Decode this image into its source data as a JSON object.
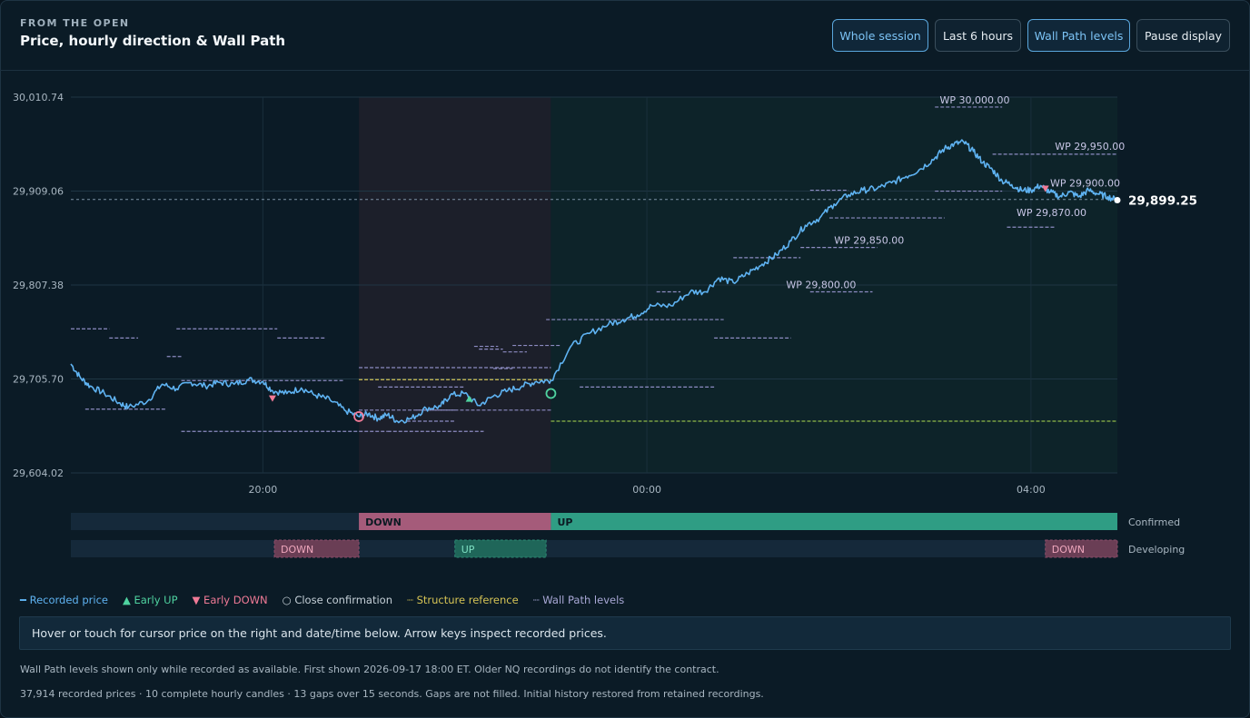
{
  "header": {
    "eyebrow": "FROM THE OPEN",
    "title": "Price, hourly direction & Wall Path"
  },
  "controls": {
    "whole_session": "Whole session",
    "last_6_hours": "Last 6 hours",
    "wall_path_levels": "Wall Path levels",
    "pause_display": "Pause display"
  },
  "legend": {
    "recorded_price": "Recorded price",
    "early_up": "Early UP",
    "early_down": "Early DOWN",
    "close_confirmation": "Close confirmation",
    "structure_reference": "Structure reference",
    "wall_path_levels": "Wall Path levels"
  },
  "hint": "Hover or touch for cursor price on the right and date/time below. Arrow keys inspect recorded prices.",
  "footnotes": {
    "line1": "Wall Path levels shown only while recorded as available. First shown 2026-09-17 18:00 ET. Older NQ recordings do not identify the contract.",
    "line2": "37,914 recorded prices · 10 complete hourly candles · 13 gaps over 15 seconds. Gaps are not filled. Initial history restored from retained recordings."
  },
  "colors": {
    "price": "#5fb3f2",
    "up": "#2f9d84",
    "down": "#a55b7a",
    "early_up": "#4fd3a0",
    "early_down": "#f07a96",
    "structure": "#d6c455",
    "wall_path": "#8d8cc2",
    "reference": "#8fa6bb"
  },
  "chart_data": {
    "type": "line",
    "x_unit": "hours (ET)",
    "x_range": [
      "18:30",
      "05:00"
    ],
    "x_ticks": [
      {
        "label": "20:00",
        "t": 20.0
      },
      {
        "label": "00:00",
        "t": 24.0
      },
      {
        "label": "04:00",
        "t": 28.0
      }
    ],
    "y_ticks": [
      {
        "label": "30,010.74",
        "v": 30010.74
      },
      {
        "label": "29,909.06",
        "v": 29909.06
      },
      {
        "label": "29,807.38",
        "v": 29807.38
      },
      {
        "label": "29,705.70",
        "v": 29705.7
      },
      {
        "label": "29,604.02",
        "v": 29604.02
      }
    ],
    "ylim": [
      29604.02,
      30010.74
    ],
    "grid": true,
    "last_price": {
      "value": 29899.25,
      "label": "29,899.25"
    },
    "reference_line": 29900.0,
    "series": [
      {
        "x": [
          18.0,
          18.1,
          18.2,
          18.35,
          18.5,
          18.6,
          18.8,
          18.95,
          19.1,
          19.25,
          19.4,
          19.55,
          19.7,
          19.85,
          20.0,
          20.1,
          20.25,
          20.4,
          20.55,
          20.7,
          20.85,
          21.0,
          21.1,
          21.2,
          21.3,
          21.4,
          21.55,
          21.7,
          21.85,
          21.95,
          22.1,
          22.25,
          22.4,
          22.55,
          22.7,
          22.85,
          23.0,
          23.2,
          23.4,
          23.6,
          23.75,
          23.9,
          24.05,
          24.25,
          24.45,
          24.6,
          24.75,
          24.9,
          25.05,
          25.2,
          25.35,
          25.5,
          25.65,
          25.8,
          25.95,
          26.1,
          26.25,
          26.4,
          26.55,
          26.7,
          26.85,
          27.0,
          27.1,
          27.2,
          27.3,
          27.4,
          27.5,
          27.6,
          27.7,
          27.8,
          27.9,
          28.0,
          28.1,
          28.2,
          28.3,
          28.4,
          28.5,
          28.6,
          28.7,
          28.8,
          28.9
        ],
        "values": [
          29722,
          29707,
          29698,
          29690,
          29680,
          29675,
          29682,
          29700,
          29695,
          29702,
          29698,
          29702,
          29700,
          29705,
          29703,
          29693,
          29690,
          29696,
          29688,
          29683,
          29672,
          29665,
          29668,
          29663,
          29667,
          29660,
          29663,
          29674,
          29676,
          29688,
          29690,
          29677,
          29687,
          29693,
          29698,
          29703,
          29704,
          29740,
          29755,
          29765,
          29770,
          29775,
          29785,
          29785,
          29800,
          29800,
          29815,
          29810,
          29820,
          29830,
          29840,
          29855,
          29872,
          29880,
          29895,
          29905,
          29910,
          29912,
          29918,
          29925,
          29933,
          29945,
          29955,
          29960,
          29962,
          29952,
          29940,
          29932,
          29920,
          29916,
          29910,
          29910,
          29915,
          29908,
          29903,
          29908,
          29903,
          29910,
          29906,
          29903,
          29899
        ]
      }
    ],
    "wall_path_labels": [
      {
        "label": "WP 30,000.00",
        "t": 27.05,
        "v": 30000.0
      },
      {
        "label": "WP 29,950.00",
        "t": 28.25,
        "v": 29950.0
      },
      {
        "label": "WP 29,900.00",
        "t": 28.2,
        "v": 29910.0
      },
      {
        "label": "WP 29,870.00",
        "t": 27.85,
        "v": 29878.0
      },
      {
        "label": "WP 29,850.00",
        "t": 25.95,
        "v": 29848.0
      },
      {
        "label": "WP 29,800.00",
        "t": 25.45,
        "v": 29800.0
      }
    ],
    "wall_path_segments": [
      {
        "t1": 18.0,
        "t2": 18.4,
        "v": 29760
      },
      {
        "t1": 18.4,
        "t2": 18.7,
        "v": 29750
      },
      {
        "t1": 19.1,
        "t2": 20.15,
        "v": 29760
      },
      {
        "t1": 20.15,
        "t2": 20.65,
        "v": 29750
      },
      {
        "t1": 19.0,
        "t2": 19.15,
        "v": 29730
      },
      {
        "t1": 18.15,
        "t2": 19.0,
        "v": 29673
      },
      {
        "t1": 19.15,
        "t2": 20.85,
        "v": 29704
      },
      {
        "t1": 19.15,
        "t2": 20.15,
        "v": 29649
      },
      {
        "t1": 20.15,
        "t2": 21.3,
        "v": 29649
      },
      {
        "t1": 21.3,
        "t2": 22.3,
        "v": 29649
      },
      {
        "t1": 21.0,
        "t2": 22.0,
        "v": 29672
      },
      {
        "t1": 21.5,
        "t2": 22.0,
        "v": 29660
      },
      {
        "t1": 21.2,
        "t2": 22.1,
        "v": 29697
      },
      {
        "t1": 21.0,
        "t2": 23.0,
        "v": 29718
      },
      {
        "t1": 22.2,
        "t2": 22.45,
        "v": 29741
      },
      {
        "t1": 22.25,
        "t2": 22.5,
        "v": 29738
      },
      {
        "t1": 22.4,
        "t2": 22.6,
        "v": 29717
      },
      {
        "t1": 22.6,
        "t2": 23.1,
        "v": 29742
      },
      {
        "t1": 22.5,
        "t2": 22.75,
        "v": 29735
      },
      {
        "t1": 21.6,
        "t2": 23.0,
        "v": 29672
      },
      {
        "t1": 22.95,
        "t2": 24.8,
        "v": 29770
      },
      {
        "t1": 24.1,
        "t2": 24.35,
        "v": 29800
      },
      {
        "t1": 24.7,
        "t2": 25.5,
        "v": 29750
      },
      {
        "t1": 23.3,
        "t2": 24.7,
        "v": 29697
      },
      {
        "t1": 24.9,
        "t2": 25.6,
        "v": 29837
      },
      {
        "t1": 25.9,
        "t2": 27.1,
        "v": 29880
      },
      {
        "t1": 25.7,
        "t2": 26.1,
        "v": 29910
      },
      {
        "t1": 27.0,
        "t2": 27.7,
        "v": 29909
      },
      {
        "t1": 27.0,
        "t2": 27.7,
        "v": 30000
      },
      {
        "t1": 27.6,
        "t2": 28.9,
        "v": 29949
      },
      {
        "t1": 27.75,
        "t2": 28.25,
        "v": 29870
      },
      {
        "t1": 25.7,
        "t2": 26.35,
        "v": 29800
      },
      {
        "t1": 25.6,
        "t2": 26.4,
        "v": 29848
      }
    ],
    "structure_segments": [
      {
        "t1": 21.0,
        "t2": 23.0,
        "v": 29705
      },
      {
        "t1": 23.0,
        "t2": 28.9,
        "v": 29660
      }
    ],
    "markers": [
      {
        "type": "early_down",
        "t": 20.1,
        "v": 29685
      },
      {
        "type": "close_confirmation",
        "t": 21.0,
        "v": 29665
      },
      {
        "type": "early_up",
        "t": 22.15,
        "v": 29684
      },
      {
        "type": "close_confirmation",
        "t": 23.0,
        "v": 29690
      },
      {
        "type": "early_down",
        "t": 28.15,
        "v": 29912
      }
    ],
    "bands": [
      {
        "t1": 21.0,
        "t2": 23.0,
        "kind": "down"
      },
      {
        "t1": 23.0,
        "t2": 28.9,
        "kind": "up"
      }
    ],
    "direction_rows": {
      "confirmed": {
        "label": "Confirmed",
        "segments": [
          {
            "t1": 21.0,
            "t2": 23.0,
            "kind": "down",
            "label": "DOWN"
          },
          {
            "t1": 23.0,
            "t2": 28.9,
            "kind": "up",
            "label": "UP"
          }
        ]
      },
      "developing": {
        "label": "Developing",
        "segments": [
          {
            "t1": 20.12,
            "t2": 21.0,
            "kind": "down",
            "label": "DOWN"
          },
          {
            "t1": 22.0,
            "t2": 22.95,
            "kind": "up",
            "label": "UP"
          },
          {
            "t1": 28.15,
            "t2": 28.9,
            "kind": "down",
            "label": "DOWN"
          }
        ]
      }
    }
  }
}
